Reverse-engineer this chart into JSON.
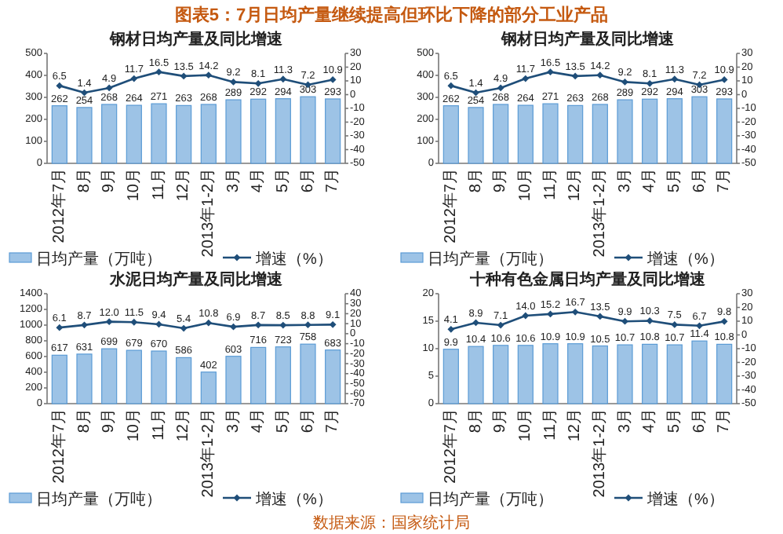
{
  "chart_data": [
    {
      "type": "other",
      "title": "图表5：7月日均产量继续提高但环比下降的部分工业产品",
      "annotations": [
        "数据来源：国家统计局"
      ]
    },
    {
      "type": "bar",
      "title": "钢材日均产量及同比增速",
      "categories": [
        "2012年7月",
        "8月",
        "9月",
        "10月",
        "11月",
        "12月",
        "2013年1-2月",
        "3月",
        "4月",
        "5月",
        "6月",
        "7月"
      ],
      "series": [
        {
          "name": "日均产量（万吨）",
          "color": "#9dc3e6",
          "values": [
            262,
            254,
            268,
            264,
            271,
            263,
            268,
            289,
            292,
            294,
            303,
            293
          ]
        },
        {
          "name": "增速（%）",
          "type": "line",
          "axis": "y2",
          "color": "#1f4e79",
          "values": [
            6.5,
            1.4,
            4.9,
            11.7,
            16.5,
            13.5,
            14.2,
            9.2,
            8.1,
            11.3,
            7.2,
            10.9
          ],
          "value_labels": [
            "6.5",
            "1.4",
            "4.9",
            "11.7",
            "16.5",
            "13.5",
            "14.2",
            "9.2",
            "8.1",
            "11.3",
            "7.2",
            "10.9"
          ]
        }
      ],
      "ylim": [
        0,
        500
      ],
      "yticks": [
        0,
        100,
        200,
        300,
        400,
        500
      ],
      "y2lim": [
        -50,
        30
      ],
      "y2ticks": [
        -50,
        -40,
        -30,
        -20,
        -10,
        0,
        10,
        20,
        30
      ],
      "data_labels": true,
      "legend": "bottom",
      "marker": "diamond"
    },
    {
      "type": "bar",
      "title": "钢材日均产量及同比增速",
      "categories": [
        "2012年7月",
        "8月",
        "9月",
        "10月",
        "11月",
        "12月",
        "2013年1-2月",
        "3月",
        "4月",
        "5月",
        "6月",
        "7月"
      ],
      "series": [
        {
          "name": "日均产量（万吨）",
          "color": "#9dc3e6",
          "values": [
            262,
            254,
            268,
            264,
            271,
            263,
            268,
            289,
            292,
            294,
            303,
            293
          ]
        },
        {
          "name": "增速（%）",
          "type": "line",
          "axis": "y2",
          "color": "#1f4e79",
          "values": [
            6.5,
            1.4,
            4.9,
            11.7,
            16.5,
            13.5,
            14.2,
            9.2,
            8.1,
            11.3,
            7.2,
            10.9
          ],
          "value_labels": [
            "6.5",
            "1.4",
            "4.9",
            "11.7",
            "16.5",
            "13.5",
            "14.2",
            "9.2",
            "8.1",
            "11.3",
            "7.2",
            "10.9"
          ]
        }
      ],
      "ylim": [
        0,
        500
      ],
      "yticks": [
        0,
        100,
        200,
        300,
        400,
        500
      ],
      "y2lim": [
        -50,
        30
      ],
      "y2ticks": [
        -50,
        -40,
        -30,
        -20,
        -10,
        0,
        10,
        20,
        30
      ],
      "data_labels": true,
      "legend": "bottom",
      "marker": "diamond"
    },
    {
      "type": "bar",
      "title": "水泥日均产量及同比增速",
      "categories": [
        "2012年7月",
        "8月",
        "9月",
        "10月",
        "11月",
        "12月",
        "2013年1-2月",
        "3月",
        "4月",
        "5月",
        "6月",
        "7月"
      ],
      "series": [
        {
          "name": "日均产量（万吨）",
          "color": "#9dc3e6",
          "values": [
            617,
            631,
            699,
            679,
            670,
            586,
            402,
            603,
            716,
            723,
            758,
            683
          ]
        },
        {
          "name": "增速（%）",
          "type": "line",
          "axis": "y2",
          "color": "#1f4e79",
          "values": [
            6.1,
            8.7,
            12.0,
            11.5,
            9.4,
            5.4,
            10.8,
            6.9,
            8.7,
            8.5,
            8.8,
            9.1
          ],
          "value_labels": [
            "6.1",
            "8.7",
            "12.0",
            "11.5",
            "9.4",
            "5.4",
            "10.8",
            "6.9",
            "8.7",
            "8.5",
            "8.8",
            "9.1"
          ]
        }
      ],
      "ylim": [
        0,
        1400
      ],
      "yticks": [
        0,
        200,
        400,
        600,
        800,
        1000,
        1200,
        1400
      ],
      "y2lim": [
        -70,
        40
      ],
      "y2ticks": [
        -70,
        -60,
        -50,
        -40,
        -30,
        -20,
        -10,
        0,
        10,
        20,
        30,
        40
      ],
      "data_labels": true,
      "legend": "bottom",
      "marker": "diamond"
    },
    {
      "type": "bar",
      "title": "十种有色金属日均产量及同比增速",
      "categories": [
        "2012年7月",
        "8月",
        "9月",
        "10月",
        "11月",
        "12月",
        "2013年1-2月",
        "3月",
        "4月",
        "5月",
        "6月",
        "7月"
      ],
      "series": [
        {
          "name": "日均产量（万吨）",
          "color": "#9dc3e6",
          "values": [
            9.9,
            10.4,
            10.6,
            10.6,
            10.9,
            10.9,
            10.5,
            10.7,
            10.8,
            10.7,
            11.4,
            10.8
          ]
        },
        {
          "name": "增速（%）",
          "type": "line",
          "axis": "y2",
          "color": "#1f4e79",
          "values": [
            4.1,
            8.9,
            7.1,
            14.0,
            15.2,
            16.7,
            13.5,
            9.9,
            10.3,
            7.5,
            6.7,
            9.8
          ],
          "value_labels": [
            "4.1",
            "8.9",
            "7.1",
            "14.0",
            "15.2",
            "16.7",
            "13.5",
            "9.9",
            "10.3",
            "7.5",
            "6.7",
            "9.8"
          ]
        }
      ],
      "ylim": [
        0,
        20
      ],
      "yticks": [
        0,
        5,
        10,
        15,
        20
      ],
      "y2lim": [
        -50,
        30
      ],
      "y2ticks": [
        -50,
        -40,
        -30,
        -20,
        -10,
        0,
        10,
        20,
        30
      ],
      "data_labels": true,
      "legend": "bottom",
      "marker": "diamond"
    }
  ]
}
